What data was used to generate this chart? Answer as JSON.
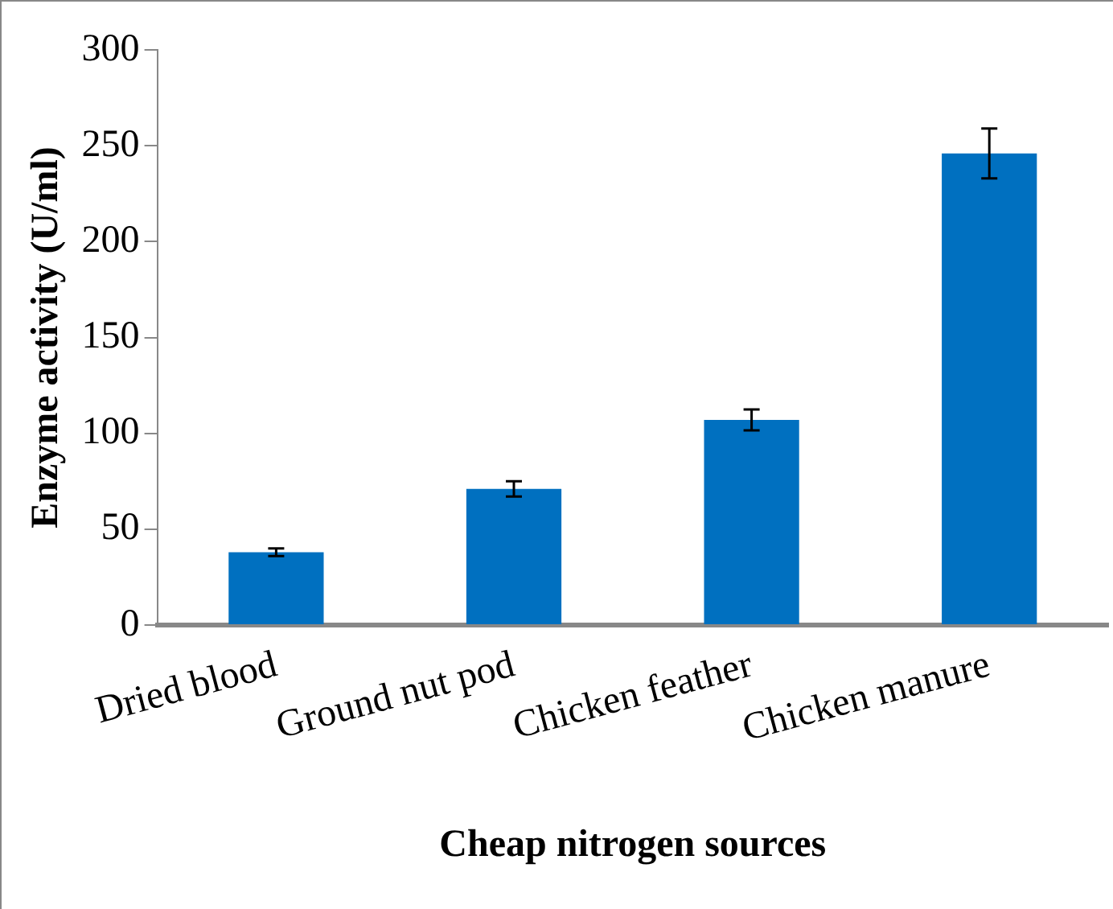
{
  "chart_data": {
    "type": "bar",
    "xlabel": "Cheap nitrogen sources",
    "ylabel": "Enzyme activity (U/ml)",
    "categories": [
      "Dried blood",
      "Ground nut pod",
      "Chicken feather",
      "Chicken manure"
    ],
    "values": [
      38,
      71,
      107,
      246
    ],
    "errors": [
      2,
      4,
      5.5,
      13
    ],
    "color": "#0070c0",
    "ylim": [
      0,
      300
    ],
    "yticks": [
      0,
      50,
      100,
      150,
      200,
      250,
      300
    ],
    "grid": false,
    "legend": false
  }
}
